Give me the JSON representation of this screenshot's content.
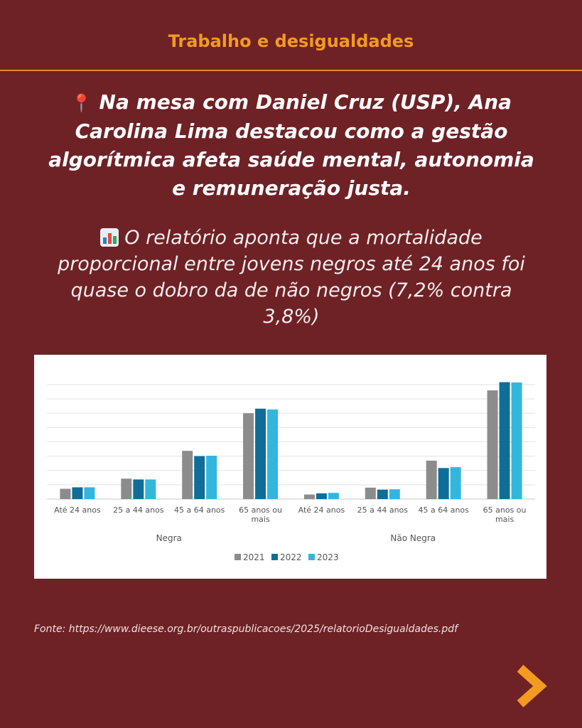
{
  "header": {
    "title": "Trabalho e desigualdades"
  },
  "lead": {
    "pin_icon": "round-pushpin-icon",
    "text": "Na mesa com Daniel Cruz (USP), Ana Carolina Lima destacou como a gestão algorítmica afeta saúde mental, autonomia e remuneração justa."
  },
  "body": {
    "chart_icon": "bar-chart-icon",
    "text": "O relatório aponta que a mortalidade proporcional entre jovens negros até 24 anos foi quase o dobro da de não negros (7,2% contra 3,8%)"
  },
  "source": {
    "text": "Fonte: https://www.dieese.org.br/outraspublicacoes/2025/relatorioDesigualdades.pdf"
  },
  "nav": {
    "next_icon": "chevron-right-icon"
  },
  "colors": {
    "background": "#6e2226",
    "accent": "#f39a21",
    "series_2021": "#8c8c8c",
    "series_2022": "#0f6e97",
    "series_2023": "#33b6dc"
  },
  "chart_data": {
    "type": "bar",
    "groups": [
      {
        "label": "Negra",
        "categories": [
          [
            "Até  24 anos"
          ],
          [
            "25 a 44 anos"
          ],
          [
            "45 a 64 anos"
          ],
          [
            "65 anos ou",
            "mais"
          ]
        ]
      },
      {
        "label": "Não Negra",
        "categories": [
          [
            "Até  24 anos"
          ],
          [
            "25 a 44 anos"
          ],
          [
            "45 a 64 anos"
          ],
          [
            "65 anos ou",
            "mais"
          ]
        ]
      }
    ],
    "series": [
      {
        "name": "2021",
        "color": "#8c8c8c",
        "values": [
          6.3,
          12.5,
          29.5,
          52.5,
          2.8,
          7.0,
          23.5,
          66.5
        ]
      },
      {
        "name": "2022",
        "color": "#0f6e97",
        "values": [
          7.2,
          12.0,
          26.3,
          55.3,
          3.5,
          5.8,
          19.0,
          71.5
        ]
      },
      {
        "name": "2023",
        "color": "#33b6dc",
        "values": [
          7.2,
          12.0,
          26.5,
          54.8,
          3.8,
          6.0,
          19.5,
          71.3
        ]
      }
    ],
    "ylim": [
      0,
      70
    ],
    "gridlines": 8,
    "grid": true,
    "legend": "bottom",
    "yaxis_labels": false
  }
}
